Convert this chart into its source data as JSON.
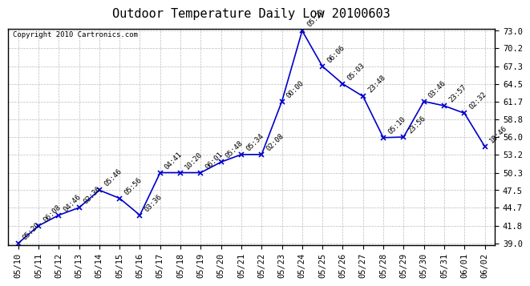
{
  "title": "Outdoor Temperature Daily Low 20100603",
  "copyright": "Copyright 2010 Cartronics.com",
  "x_labels": [
    "05/10",
    "05/11",
    "05/12",
    "05/13",
    "05/14",
    "05/15",
    "05/16",
    "05/17",
    "05/18",
    "05/19",
    "05/20",
    "05/21",
    "05/22",
    "05/23",
    "05/24",
    "05/25",
    "05/26",
    "05/27",
    "05/28",
    "05/29",
    "05/30",
    "05/31",
    "06/01",
    "06/02"
  ],
  "y_values": [
    39.0,
    41.8,
    43.5,
    44.7,
    47.5,
    46.2,
    43.5,
    50.3,
    50.3,
    50.3,
    52.0,
    53.2,
    53.2,
    61.7,
    73.0,
    67.3,
    64.5,
    62.5,
    55.9,
    56.0,
    61.7,
    61.0,
    59.8,
    54.5
  ],
  "time_labels": [
    "05:20",
    "06:08",
    "04:46",
    "02:36",
    "05:46",
    "05:56",
    "03:36",
    "04:41",
    "10:20",
    "06:01",
    "05:48",
    "05:34",
    "02:08",
    "00:00",
    "05:20",
    "06:06",
    "05:03",
    "23:48",
    "05:10",
    "23:56",
    "03:46",
    "23:57",
    "02:32",
    "18:46"
  ],
  "y_ticks": [
    39.0,
    41.8,
    44.7,
    47.5,
    50.3,
    53.2,
    56.0,
    58.8,
    61.7,
    64.5,
    67.3,
    70.2,
    73.0
  ],
  "line_color": "#0000CC",
  "marker_color": "#0000CC",
  "grid_color": "#BBBBBB",
  "bg_color": "#FFFFFF",
  "title_fontsize": 11,
  "copyright_fontsize": 6.5,
  "label_fontsize": 6.5,
  "tick_fontsize": 7.5
}
